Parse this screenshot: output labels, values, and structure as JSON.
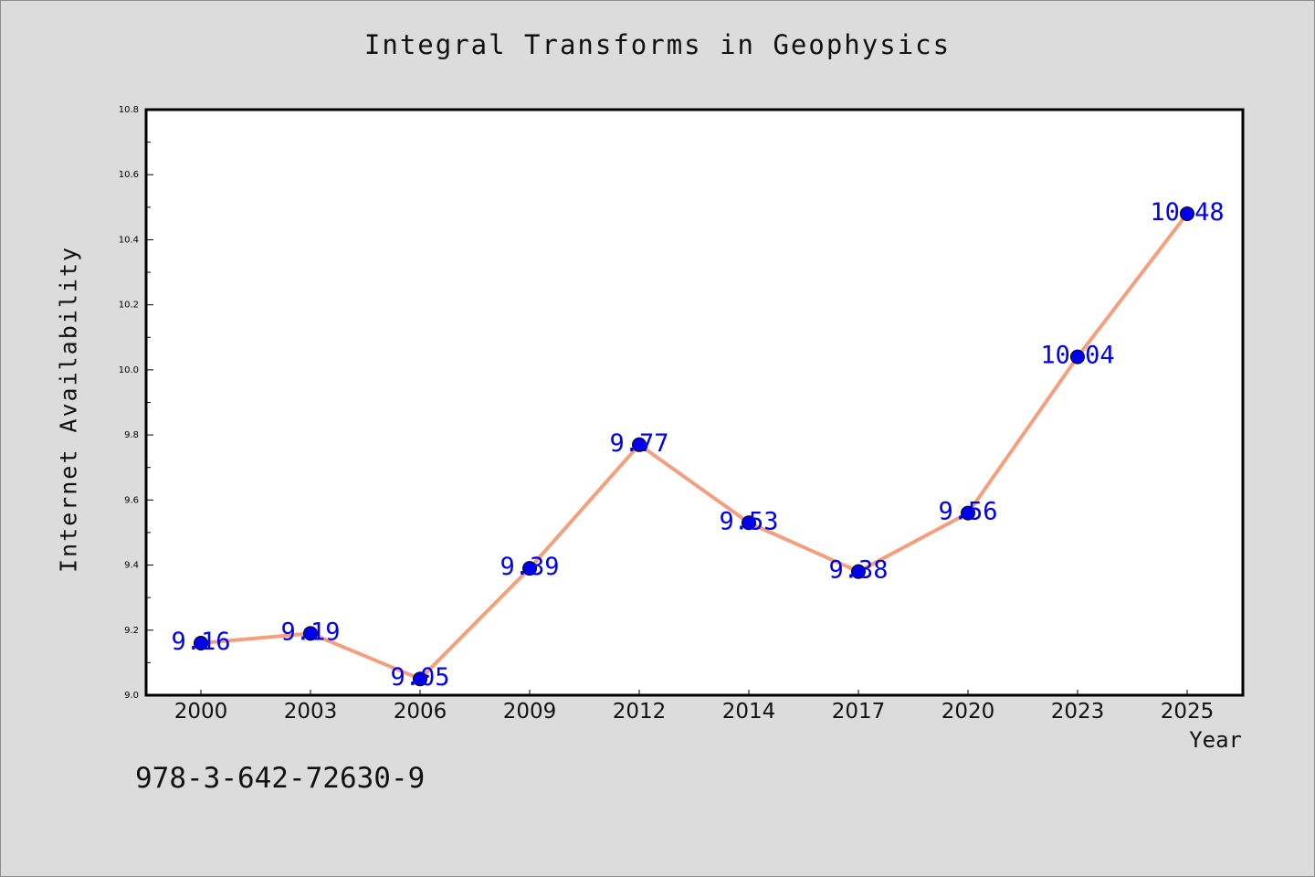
{
  "chart_data": {
    "type": "line",
    "title": "Integral Transforms in Geophysics",
    "xlabel": "Year",
    "ylabel": "Internet Availability",
    "categories": [
      "2000",
      "2003",
      "2006",
      "2009",
      "2012",
      "2014",
      "2017",
      "2020",
      "2023",
      "2025"
    ],
    "values": [
      9.16,
      9.19,
      9.05,
      9.39,
      9.77,
      9.53,
      9.38,
      9.56,
      10.04,
      10.48
    ],
    "data_labels": [
      "9.16",
      "9.19",
      "9.05",
      "9.39",
      "9.77",
      "9.53",
      "9.38",
      "9.56",
      "10.04",
      "10.48"
    ],
    "ylim": [
      9.0,
      10.8
    ],
    "yticks": [
      "9.0",
      "9.2",
      "9.4",
      "9.6",
      "9.8",
      "10.0",
      "10.2",
      "10.4",
      "10.6",
      "10.8"
    ],
    "grid": false,
    "line_color": "#f4a07e",
    "marker_color": "#0000ee",
    "label_color": "#0000ee"
  },
  "annotation": "978-3-642-72630-9"
}
